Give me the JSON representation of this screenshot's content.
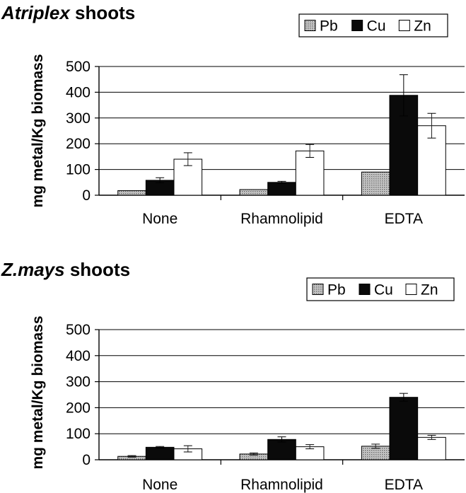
{
  "chart_data": [
    {
      "type": "bar",
      "title_italic": "Atriplex",
      "title_rest": " shoots",
      "ylabel": "mg metal/Kg biomass",
      "xlabel": "",
      "categories": [
        "None",
        "Rhamnolipid",
        "EDTA"
      ],
      "ylim": [
        0,
        500
      ],
      "yticks": [
        0,
        100,
        200,
        300,
        400,
        500
      ],
      "grid": true,
      "legend_position": "top-right",
      "series": [
        {
          "name": "Pb",
          "values": [
            18,
            22,
            90
          ],
          "errors": [
            0,
            0,
            0
          ],
          "color": "#bdbdbd",
          "pattern": "dotted"
        },
        {
          "name": "Cu",
          "values": [
            58,
            50,
            388
          ],
          "errors": [
            10,
            4,
            80
          ],
          "color": "#0a0a0a",
          "pattern": "solid"
        },
        {
          "name": "Zn",
          "values": [
            140,
            172,
            270
          ],
          "errors": [
            25,
            25,
            48
          ],
          "color": "#ffffff",
          "pattern": "solid"
        }
      ]
    },
    {
      "type": "bar",
      "title_italic": "Z.mays",
      "title_rest": "  shoots",
      "ylabel": "mg metal/Kg biomass",
      "xlabel": "",
      "categories": [
        "None",
        "Rhamnolipid",
        "EDTA"
      ],
      "ylim": [
        0,
        500
      ],
      "yticks": [
        0,
        100,
        200,
        300,
        400,
        500
      ],
      "grid": true,
      "legend_position": "top-right",
      "series": [
        {
          "name": "Pb",
          "values": [
            13,
            22,
            52
          ],
          "errors": [
            3,
            4,
            8
          ],
          "color": "#bdbdbd",
          "pattern": "dotted"
        },
        {
          "name": "Cu",
          "values": [
            48,
            78,
            240
          ],
          "errors": [
            3,
            10,
            15
          ],
          "color": "#0a0a0a",
          "pattern": "solid"
        },
        {
          "name": "Zn",
          "values": [
            42,
            50,
            86
          ],
          "errors": [
            12,
            8,
            8
          ],
          "color": "#ffffff",
          "pattern": "solid"
        }
      ]
    }
  ]
}
